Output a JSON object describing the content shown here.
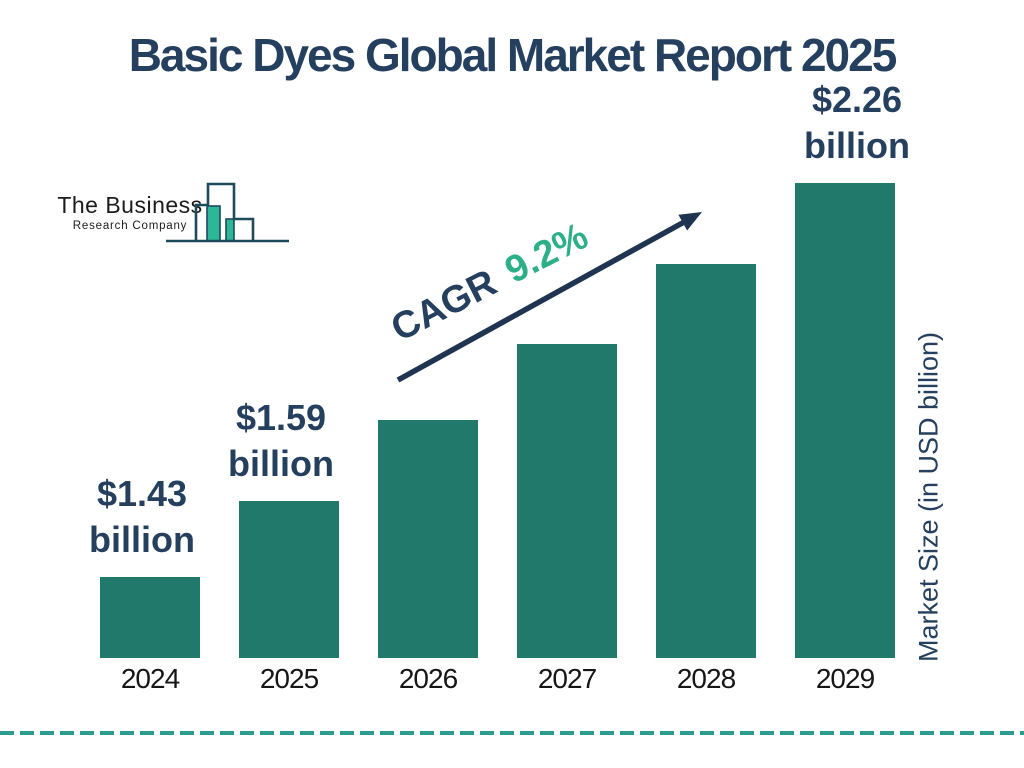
{
  "title": "Basic Dyes Global Market Report 2025",
  "logo": {
    "name_line1": "The Business",
    "name_line2": "Research Company"
  },
  "annotation": {
    "cagr_label": "CAGR",
    "cagr_value": "9.2%"
  },
  "y_axis_label": "Market Size (in USD billion)",
  "colors": {
    "navy": "#24405E",
    "bar": "#21796C",
    "green": "#2EB086",
    "dash": "#2A9D8F",
    "arrow": "#1E3450"
  },
  "chart_data": {
    "type": "bar",
    "title": "Basic Dyes Global Market Report 2025",
    "categories": [
      "2024",
      "2025",
      "2026",
      "2027",
      "2028",
      "2029"
    ],
    "values": [
      1.43,
      1.59,
      1.76,
      1.92,
      2.09,
      2.26
    ],
    "value_labels": [
      "$1.43 billion",
      "$1.59 billion",
      null,
      null,
      null,
      "$2.26 billion"
    ],
    "xlabel": "",
    "ylabel": "Market Size (in USD billion)",
    "ylim": [
      1.26,
      2.26
    ],
    "annotation": "CAGR 9.2%",
    "grid": false,
    "legend": "none"
  }
}
